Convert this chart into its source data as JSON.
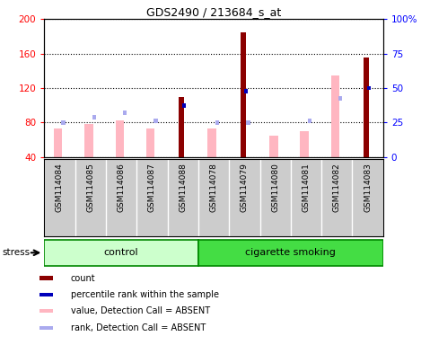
{
  "title": "GDS2490 / 213684_s_at",
  "samples": [
    "GSM114084",
    "GSM114085",
    "GSM114086",
    "GSM114087",
    "GSM114088",
    "GSM114078",
    "GSM114079",
    "GSM114080",
    "GSM114081",
    "GSM114082",
    "GSM114083"
  ],
  "count": [
    null,
    null,
    null,
    null,
    110,
    null,
    185,
    null,
    null,
    null,
    155
  ],
  "percentile_rank": [
    null,
    null,
    null,
    null,
    100,
    null,
    116,
    null,
    null,
    null,
    120
  ],
  "value_absent": [
    73,
    78,
    82,
    73,
    null,
    73,
    null,
    65,
    70,
    135,
    null
  ],
  "rank_absent": [
    80,
    86,
    91,
    82,
    null,
    80,
    80,
    null,
    82,
    108,
    null
  ],
  "ylim_left": [
    40,
    200
  ],
  "ylim_right": [
    0,
    100
  ],
  "yticks_left": [
    40,
    80,
    120,
    160,
    200
  ],
  "yticks_right": [
    0,
    25,
    50,
    75,
    100
  ],
  "color_count": "#8B0000",
  "color_percentile": "#0000BB",
  "color_value_absent": "#FFB6C1",
  "color_rank_absent": "#AAAAEE",
  "group_control_color": "#CCFFCC",
  "group_smoking_color": "#44DD44",
  "n_control": 5,
  "n_total": 11,
  "stress_label": "stress",
  "legend_items": [
    [
      "#8B0000",
      "count"
    ],
    [
      "#0000BB",
      "percentile rank within the sample"
    ],
    [
      "#FFB6C1",
      "value, Detection Call = ABSENT"
    ],
    [
      "#AAAAEE",
      "rank, Detection Call = ABSENT"
    ]
  ]
}
